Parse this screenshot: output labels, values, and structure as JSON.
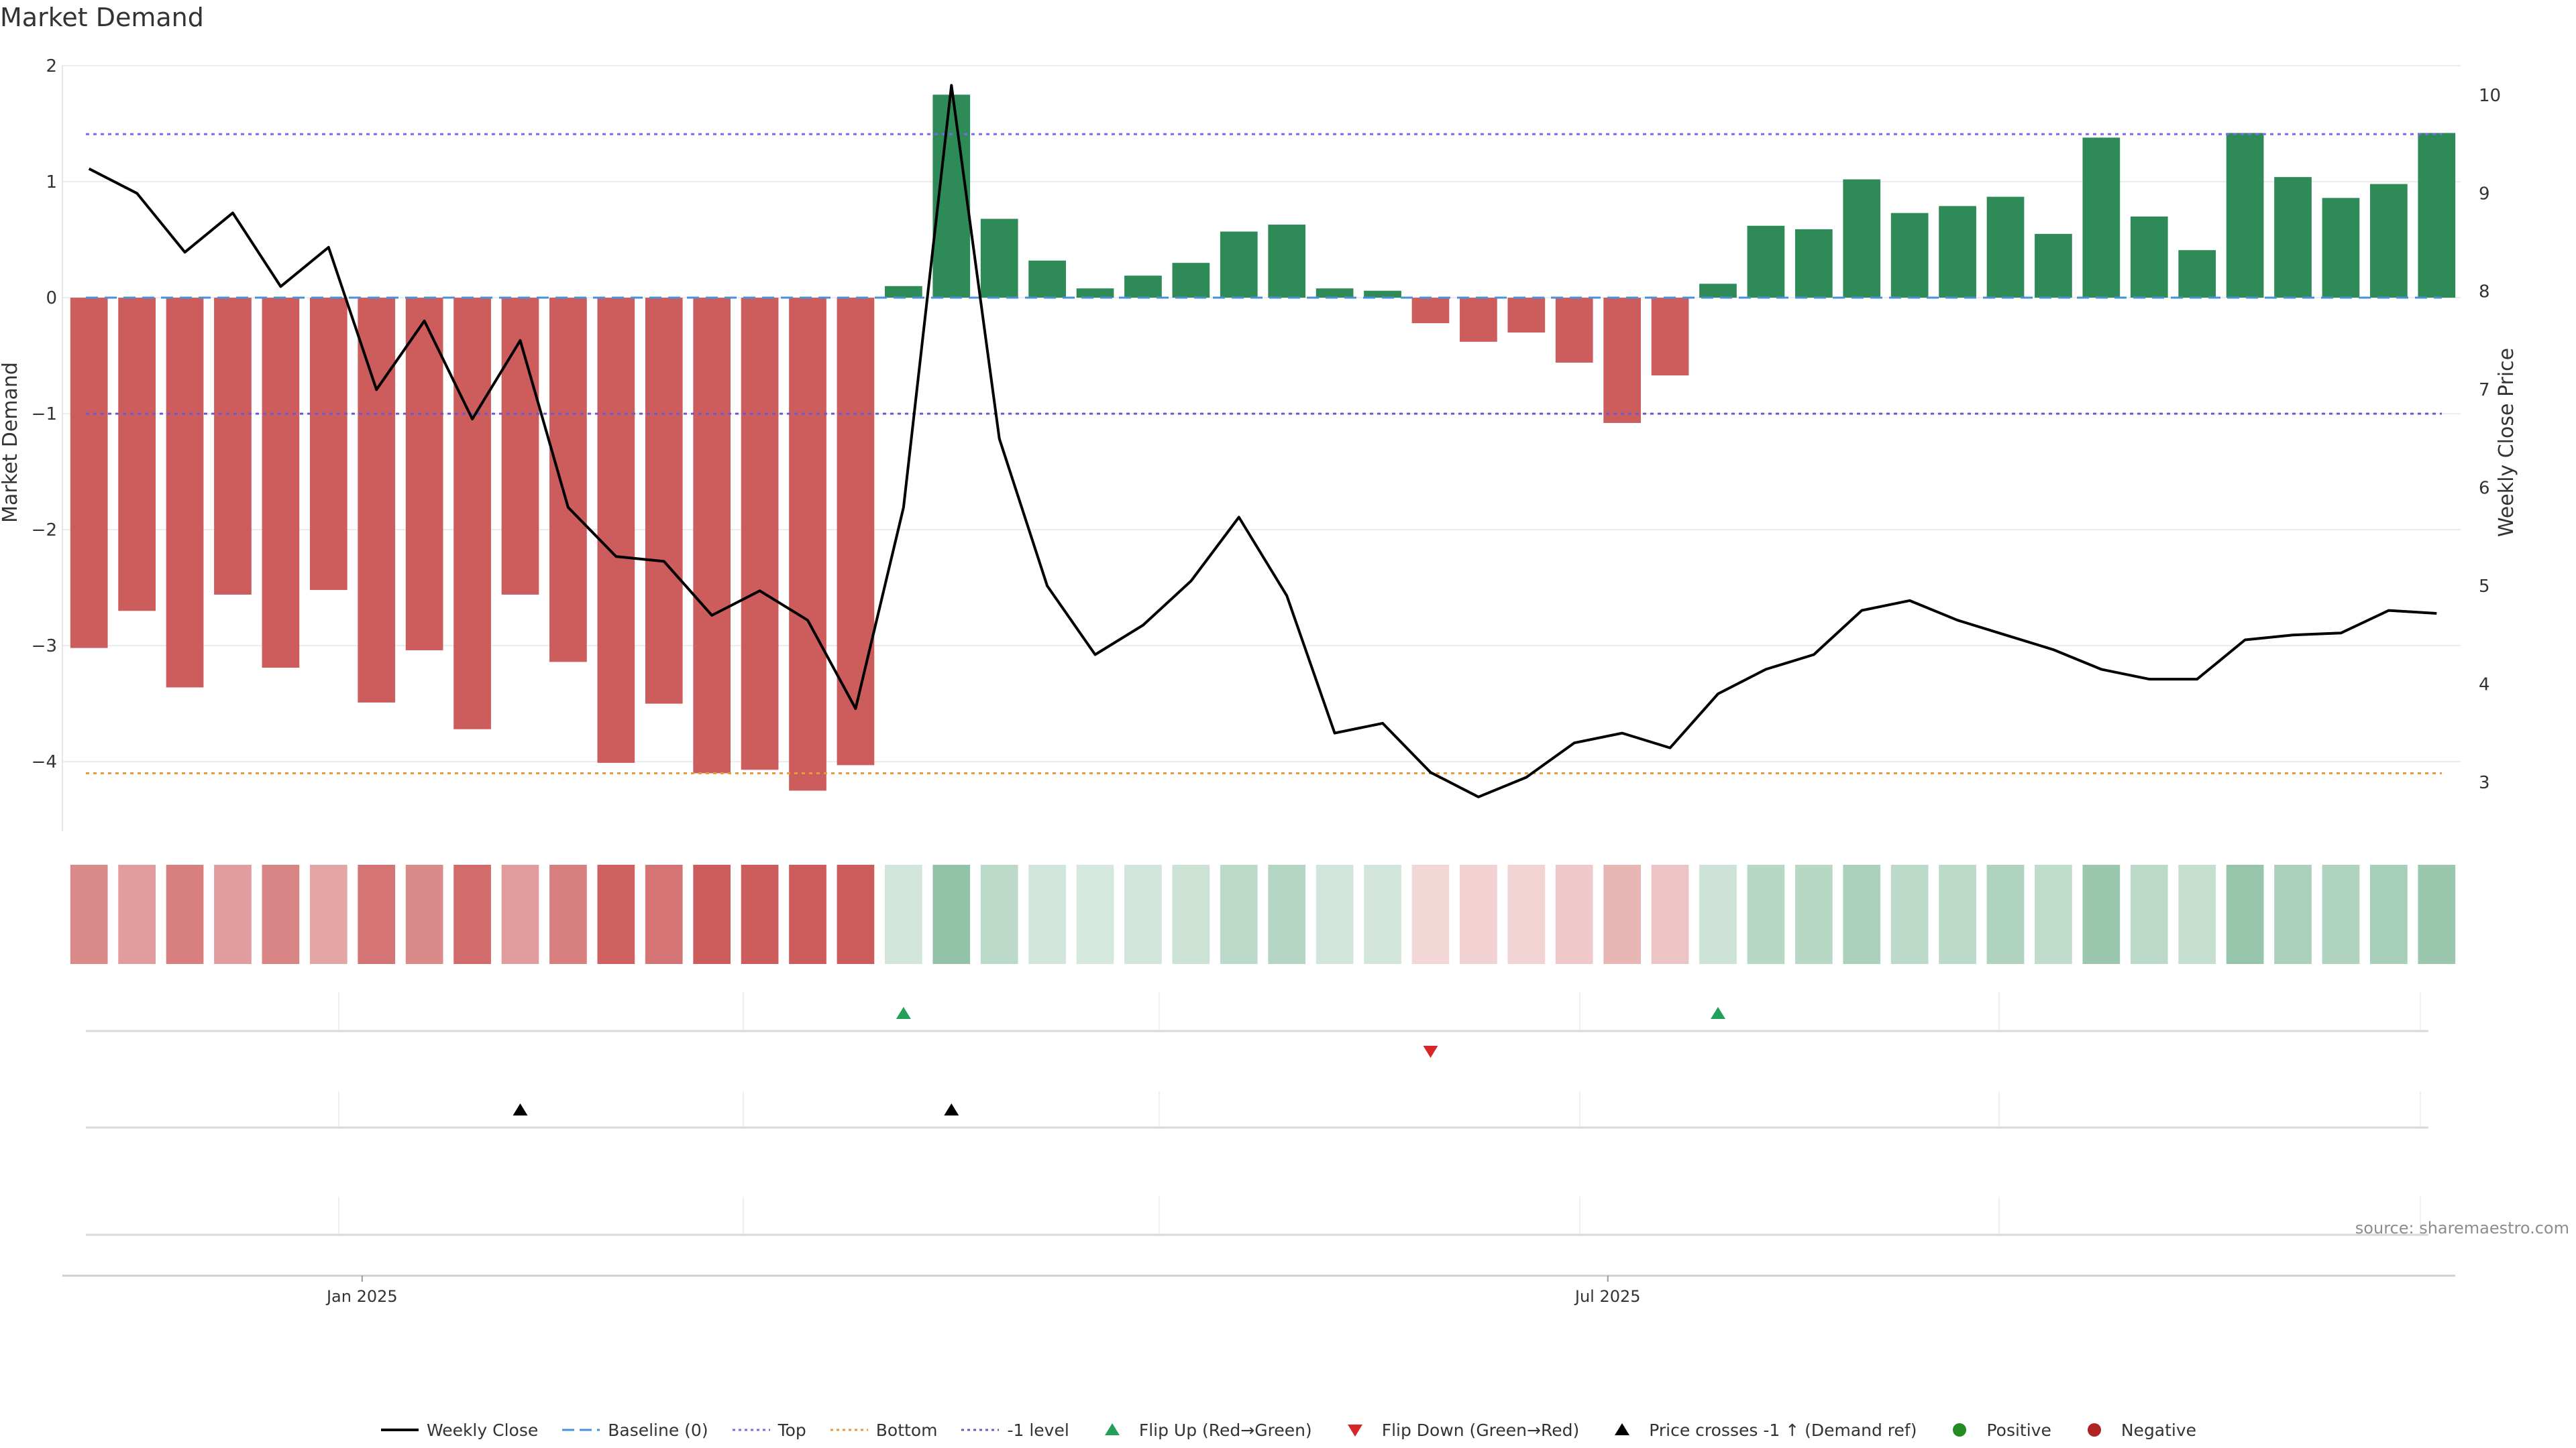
{
  "title": "Market Demand",
  "source": "source: sharemaestro.com",
  "colors": {
    "positive": "#2e8b57",
    "negative": "#cd5c5c",
    "line": "#000000",
    "baseline": "#4a90d9",
    "top": "#7b68ee",
    "bottom": "#e69b3a",
    "level": "#6a5acd",
    "flip_up": "#22a05a",
    "flip_down": "#d62728",
    "cross": "#000000",
    "dot_pos": "#228b22",
    "dot_neg": "#b22222"
  },
  "chart_data": {
    "type": "bar+line",
    "title": "Market Demand",
    "ylabel_left": "Market Demand",
    "ylabel_right": "Weekly Close Price",
    "ylim_left": [
      -4.6,
      2.0
    ],
    "ylim_right": [
      2.5,
      10.3
    ],
    "yticks_left": [
      "−4",
      "−3",
      "−2",
      "−1",
      "0",
      "1",
      "2"
    ],
    "yticks_right": [
      "3",
      "4",
      "5",
      "6",
      "7",
      "8",
      "9",
      "10"
    ],
    "x_tick_labels": [
      {
        "label": "Jan 2025",
        "index": 5.7
      },
      {
        "label": "Jul 2025",
        "index": 31.7
      }
    ],
    "demand": [
      -3.02,
      -2.7,
      -3.36,
      -2.56,
      -3.19,
      -2.52,
      -3.49,
      -3.04,
      -3.72,
      -2.56,
      -3.14,
      -4.01,
      -3.5,
      -4.1,
      -4.07,
      -4.25,
      -4.03,
      0.1,
      1.75,
      0.68,
      0.32,
      0.08,
      0.19,
      0.3,
      0.57,
      0.63,
      0.08,
      0.06,
      -0.22,
      -0.38,
      -0.3,
      -0.56,
      -1.08,
      -0.67,
      0.12,
      0.62,
      0.59,
      1.02,
      0.73,
      0.79,
      0.87,
      0.55,
      1.38,
      0.7,
      0.41,
      1.42,
      1.04,
      0.86,
      0.98,
      1.42
    ],
    "weekly_close": [
      9.25,
      9.0,
      8.4,
      8.8,
      8.05,
      8.45,
      7.0,
      7.7,
      6.7,
      7.5,
      5.8,
      5.3,
      5.25,
      4.7,
      4.95,
      4.65,
      3.75,
      5.8,
      10.1,
      6.5,
      5.0,
      4.3,
      4.6,
      5.05,
      5.7,
      4.9,
      3.5,
      3.6,
      3.1,
      2.85,
      3.05,
      3.4,
      3.5,
      3.35,
      3.9,
      4.15,
      4.3,
      4.75,
      4.85,
      4.65,
      4.5,
      4.35,
      4.15,
      4.05,
      4.05,
      4.45,
      4.5,
      4.52,
      4.75,
      4.72
    ],
    "lines": {
      "top": 1.41,
      "baseline": 0,
      "level_neg1": -1,
      "bottom": -4.1
    },
    "heat_intensity": [
      0.72,
      0.6,
      0.78,
      0.6,
      0.75,
      0.55,
      0.85,
      0.72,
      0.9,
      0.6,
      0.78,
      0.97,
      0.85,
      1.0,
      1.0,
      1.0,
      1.0,
      0.22,
      0.52,
      0.32,
      0.22,
      0.2,
      0.22,
      0.25,
      0.32,
      0.36,
      0.22,
      0.22,
      0.25,
      0.28,
      0.27,
      0.33,
      0.45,
      0.36,
      0.24,
      0.34,
      0.34,
      0.4,
      0.32,
      0.32,
      0.38,
      0.3,
      0.48,
      0.32,
      0.28,
      0.5,
      0.4,
      0.38,
      0.42,
      0.48
    ],
    "flip_up_indices": [
      17,
      34
    ],
    "flip_down_indices": [
      28
    ],
    "price_cross_indices": [
      9,
      18
    ]
  },
  "legend": [
    {
      "label": "Weekly Close",
      "symbol": "line"
    },
    {
      "label": "Baseline (0)",
      "symbol": "dash-baseline"
    },
    {
      "label": "Top",
      "symbol": "dot-top"
    },
    {
      "label": "Bottom",
      "symbol": "dot-bottom"
    },
    {
      "label": "-1 level",
      "symbol": "dot-level"
    },
    {
      "label": "Flip Up (Red→Green)",
      "symbol": "tri-up-green"
    },
    {
      "label": "Flip Down (Green→Red)",
      "symbol": "tri-down-red"
    },
    {
      "label": "Price crosses -1 ↑ (Demand ref)",
      "symbol": "tri-up-black"
    },
    {
      "label": "Positive",
      "symbol": "dot-pos"
    },
    {
      "label": "Negative",
      "symbol": "dot-neg"
    }
  ]
}
